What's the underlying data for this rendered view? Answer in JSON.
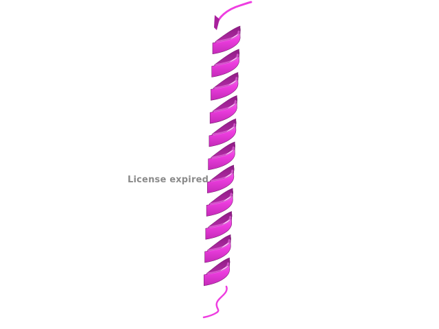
{
  "viewer": {
    "background_color": "#ffffff",
    "watermark_text": "License expired",
    "watermark_color": "#8a8a8a"
  },
  "molecule": {
    "representation": "cartoon",
    "secondary_structure": "alpha-helix",
    "helix_turns": 11,
    "colors": {
      "front": "#ee3ee0",
      "highlight": "#f77cf0",
      "back": "#a8209c",
      "edge": "#7a1872"
    }
  }
}
